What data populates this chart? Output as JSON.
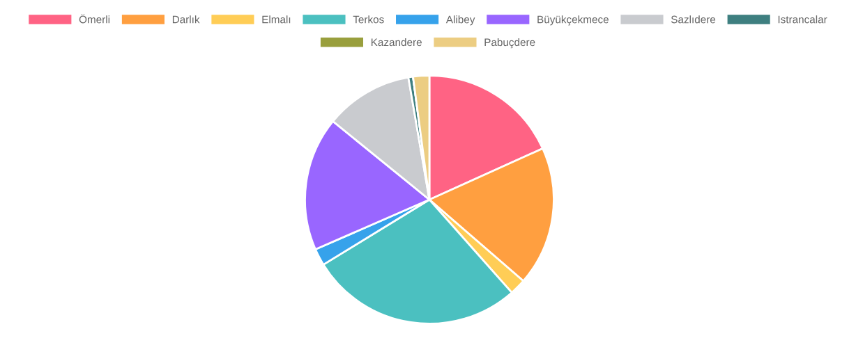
{
  "chart_data": {
    "type": "pie",
    "categories": [
      "Ömerli",
      "Darlık",
      "Elmalı",
      "Terkos",
      "Alibey",
      "Büyükçekmece",
      "Sazlıdere",
      "Istrancalar",
      "Kazandere",
      "Pabuçdere"
    ],
    "values": [
      18.2,
      18.1,
      2.1,
      27.7,
      2.2,
      17.4,
      11.4,
      0.6,
      null,
      2.1
    ],
    "colors": [
      "#ff6384",
      "#ff9f40",
      "#ffcd56",
      "#4bc0c0",
      "#36a2eb",
      "#9966ff",
      "#c9cbcf",
      "#3e7f80",
      "#999f3d",
      "#eccd82"
    ],
    "legend": "top"
  }
}
